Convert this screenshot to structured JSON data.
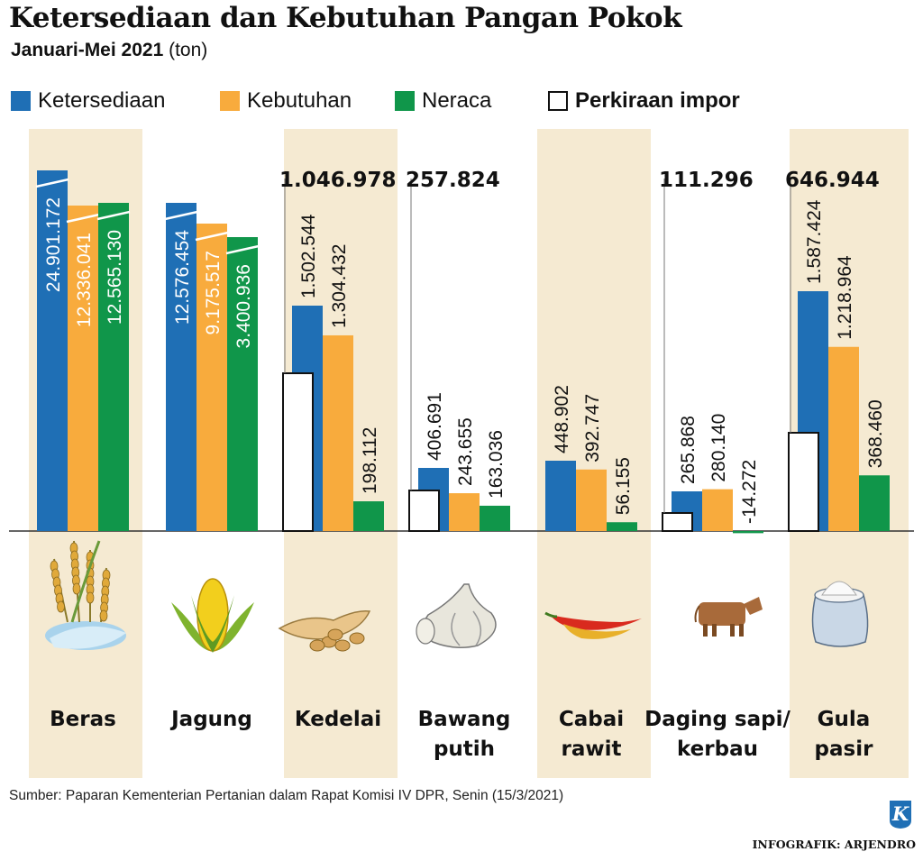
{
  "header": {
    "title": "Ketersediaan dan Kebutuhan Pangan Pokok",
    "subtitle_bold": "Januari-Mei 2021",
    "subtitle_unit": "(ton)"
  },
  "colors": {
    "ketersediaan": "#1f6fb5",
    "kebutuhan": "#f8ab3d",
    "neraca": "#10964a",
    "impor_fill": "#ffffff",
    "band": "#f5ead2"
  },
  "chart_data": {
    "type": "bar",
    "legend_position": "top",
    "legend": [
      "Ketersediaan",
      "Kebutuhan",
      "Neraca",
      "Perkiraan impor"
    ],
    "categories": [
      "Beras",
      "Jagung",
      "Kedelai",
      "Bawang putih",
      "Cabai rawit",
      "Daging sapi/ kerbau",
      "Gula pasir"
    ],
    "category_lines": [
      [
        "Beras"
      ],
      [
        "Jagung"
      ],
      [
        "Kedelai"
      ],
      [
        "Bawang",
        "putih"
      ],
      [
        "Cabai",
        "rawit"
      ],
      [
        "Daging sapi/",
        "kerbau"
      ],
      [
        "Gula",
        "pasir"
      ]
    ],
    "series": [
      {
        "name": "Ketersediaan",
        "values": [
          24901172,
          12576454,
          1502544,
          406691,
          448902,
          265868,
          1587424
        ],
        "labels": [
          "24.901.172",
          "12.576.454",
          "1.502.544",
          "406.691",
          "448.902",
          "265.868",
          "1.587.424"
        ]
      },
      {
        "name": "Kebutuhan",
        "values": [
          12336041,
          9175517,
          1304432,
          243655,
          392747,
          280140,
          1218964
        ],
        "labels": [
          "12.336.041",
          "9.175.517",
          "1.304.432",
          "243.655",
          "392.747",
          "280.140",
          "1.218.964"
        ]
      },
      {
        "name": "Neraca",
        "values": [
          12565130,
          3400936,
          198112,
          163036,
          56155,
          -14272,
          368460
        ],
        "labels": [
          "12.565.130",
          "3.400.936",
          "198.112",
          "163.036",
          "56.155",
          "-14.272",
          "368.460"
        ]
      },
      {
        "name": "Perkiraan impor",
        "values": [
          null,
          null,
          1046978,
          257824,
          null,
          111296,
          646944
        ],
        "labels": [
          "",
          "",
          "1.046.978",
          "257.824",
          "",
          "111.296",
          "646.944"
        ]
      }
    ]
  },
  "footer": {
    "source": "Sumber: Paparan Kementerian Pertanian dalam Rapat Komisi IV DPR, Senin (15/3/2021)",
    "credit": "INFOGRAFIK: ARJENDRO",
    "logo_letter": "K"
  }
}
